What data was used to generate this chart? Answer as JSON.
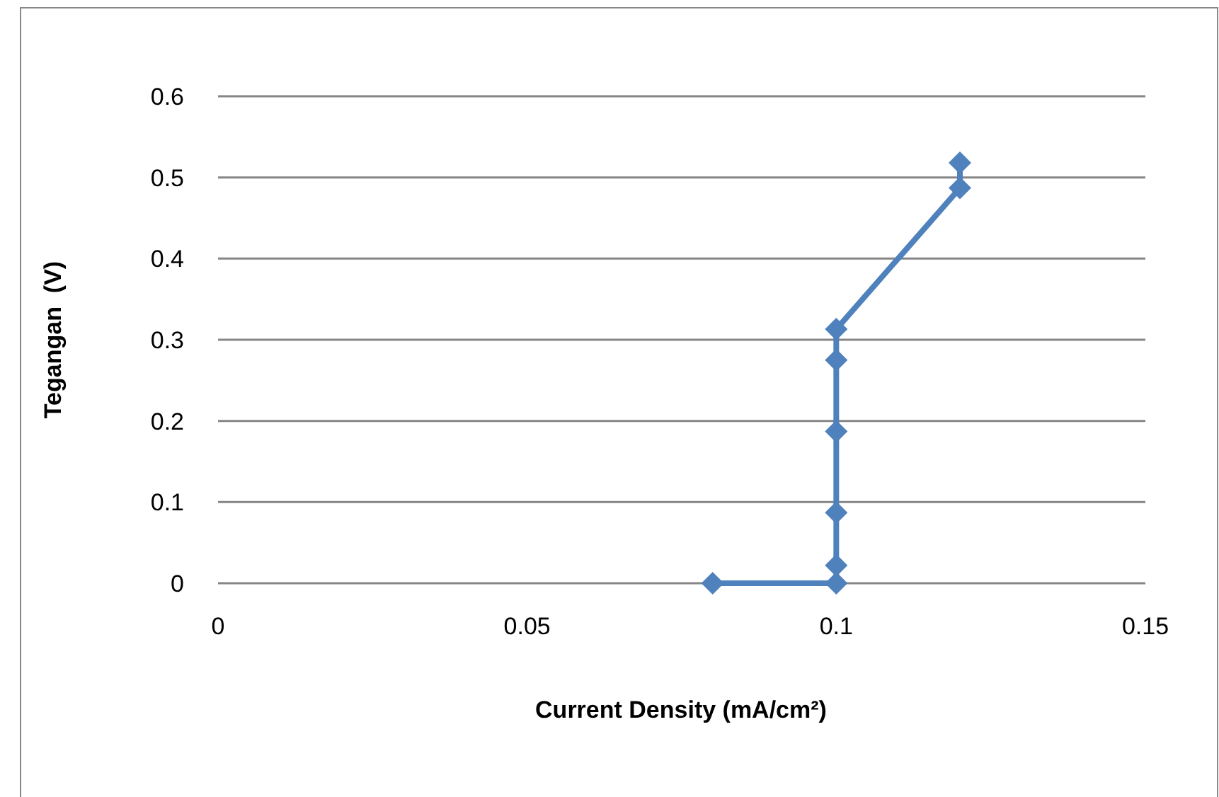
{
  "chart_data": {
    "type": "line",
    "xlabel": "Current Density (mA/cm²)",
    "ylabel": "Tegangan  (V)",
    "series": [
      {
        "color": "#4f81bd",
        "x": [
          0.08,
          0.1,
          0.1,
          0.1,
          0.1,
          0.1,
          0.1,
          0.12,
          0.12
        ],
        "values": [
          0,
          0,
          0.022,
          0.087,
          0.187,
          0.275,
          0.313,
          0.487,
          0.518
        ]
      }
    ],
    "xlim": [
      0,
      0.15
    ],
    "xticks": [
      0,
      0.05,
      0.1,
      0.15
    ],
    "ylim": [
      0,
      0.6
    ],
    "yticks": [
      0,
      0.1,
      0.2,
      0.3,
      0.4,
      0.5,
      0.6
    ],
    "grid": "y",
    "marker": "diamond",
    "line_style": "solid"
  }
}
